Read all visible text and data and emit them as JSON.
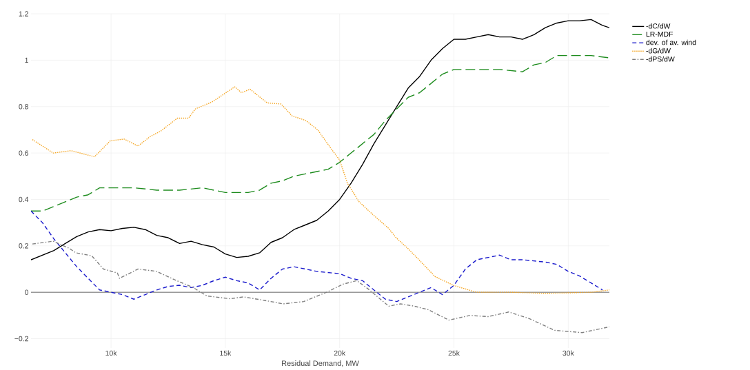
{
  "chart_data": {
    "type": "line",
    "xlabel": "Residual Demand, MW",
    "xlim": [
      6500,
      31800
    ],
    "ylim": [
      -0.24,
      1.2
    ],
    "xticks": [
      {
        "value": 10000,
        "label": "10k"
      },
      {
        "value": 15000,
        "label": "15k"
      },
      {
        "value": 20000,
        "label": "20k"
      },
      {
        "value": 25000,
        "label": "25k"
      },
      {
        "value": 30000,
        "label": "30k"
      }
    ],
    "yticks": [
      {
        "value": -0.2,
        "label": "−0.2"
      },
      0,
      0.2,
      0.4,
      0.6,
      0.8,
      1,
      1.2
    ],
    "grid": true,
    "legend": "top right",
    "marker": "none",
    "ref_lines": [
      {
        "axis": "y",
        "value": 0,
        "color": "#444444"
      }
    ],
    "series": [
      {
        "name": "-dC/dW",
        "color": "#000000",
        "line_style": "solid",
        "x": [
          6500,
          7500,
          8000,
          8500,
          9000,
          9500,
          10000,
          10500,
          11000,
          11500,
          12000,
          12500,
          13000,
          13500,
          14000,
          14500,
          15000,
          15500,
          16000,
          16500,
          17000,
          17500,
          18000,
          18500,
          19000,
          19500,
          20000,
          20500,
          21000,
          21500,
          22000,
          22500,
          23000,
          23500,
          24000,
          24500,
          25000,
          25500,
          26000,
          26500,
          27000,
          27500,
          28000,
          28500,
          29000,
          29500,
          30000,
          30500,
          31000,
          31500,
          31800
        ],
        "values": [
          0.14,
          0.18,
          0.21,
          0.24,
          0.26,
          0.27,
          0.265,
          0.275,
          0.28,
          0.27,
          0.245,
          0.235,
          0.21,
          0.22,
          0.205,
          0.195,
          0.165,
          0.15,
          0.155,
          0.17,
          0.215,
          0.235,
          0.27,
          0.29,
          0.31,
          0.35,
          0.4,
          0.47,
          0.55,
          0.64,
          0.72,
          0.8,
          0.88,
          0.93,
          1.0,
          1.05,
          1.09,
          1.09,
          1.1,
          1.11,
          1.1,
          1.1,
          1.09,
          1.11,
          1.14,
          1.16,
          1.17,
          1.17,
          1.175,
          1.15,
          1.14
        ]
      },
      {
        "name": "LR-MDF",
        "color": "#1e8c1e",
        "line_style": "longdash",
        "x": [
          6500,
          7000,
          7500,
          8000,
          8500,
          9000,
          9500,
          10000,
          11000,
          12000,
          13000,
          14000,
          15000,
          16000,
          16500,
          17000,
          17500,
          18000,
          19000,
          19500,
          20000,
          20500,
          21000,
          21500,
          22000,
          22500,
          23000,
          23500,
          24000,
          24500,
          25000,
          26000,
          27000,
          28000,
          28500,
          29000,
          29500,
          30000,
          31000,
          31800
        ],
        "values": [
          0.35,
          0.35,
          0.37,
          0.39,
          0.41,
          0.42,
          0.45,
          0.45,
          0.45,
          0.44,
          0.44,
          0.45,
          0.43,
          0.43,
          0.44,
          0.47,
          0.48,
          0.5,
          0.52,
          0.53,
          0.56,
          0.6,
          0.64,
          0.68,
          0.74,
          0.79,
          0.84,
          0.86,
          0.9,
          0.94,
          0.96,
          0.96,
          0.96,
          0.95,
          0.98,
          0.99,
          1.02,
          1.02,
          1.02,
          1.01
        ]
      },
      {
        "name": "dev. of av. wind",
        "color": "#1a1acc",
        "line_style": "dashed",
        "x": [
          6500,
          7000,
          7500,
          8000,
          8500,
          9000,
          9500,
          10000,
          10500,
          11000,
          11500,
          12000,
          12500,
          13000,
          13500,
          14000,
          14500,
          15000,
          15500,
          16000,
          16500,
          17000,
          17500,
          18000,
          18500,
          19000,
          19500,
          20000,
          20500,
          21000,
          21500,
          22000,
          22500,
          23000,
          23500,
          24000,
          24500,
          25000,
          25500,
          26000,
          26500,
          27000,
          27500,
          28000,
          28500,
          29000,
          29500,
          30000,
          30500,
          31000,
          31500
        ],
        "values": [
          0.35,
          0.3,
          0.23,
          0.17,
          0.11,
          0.06,
          0.01,
          0.0,
          -0.01,
          -0.03,
          -0.01,
          0.01,
          0.025,
          0.03,
          0.02,
          0.03,
          0.05,
          0.065,
          0.05,
          0.04,
          0.01,
          0.06,
          0.1,
          0.11,
          0.1,
          0.09,
          0.085,
          0.08,
          0.06,
          0.05,
          0.01,
          -0.03,
          -0.04,
          -0.02,
          0.0,
          0.02,
          -0.01,
          0.03,
          0.1,
          0.14,
          0.15,
          0.16,
          0.14,
          0.14,
          0.135,
          0.13,
          0.12,
          0.09,
          0.07,
          0.04,
          0.01
        ]
      },
      {
        "name": "-dG/dW",
        "color": "#f5a623",
        "line_style": "dotted",
        "x": [
          6560,
          7470,
          8250,
          9280,
          9970,
          10580,
          11180,
          11700,
          12180,
          12900,
          13390,
          13690,
          14420,
          15410,
          15710,
          16080,
          16830,
          17440,
          17920,
          18520,
          19040,
          19640,
          20000,
          20340,
          20850,
          21450,
          22150,
          22450,
          22970,
          23480,
          24170,
          25000,
          25990,
          27500,
          29010,
          31030,
          31800
        ],
        "values": [
          0.658,
          0.6,
          0.61,
          0.584,
          0.653,
          0.66,
          0.63,
          0.67,
          0.695,
          0.75,
          0.75,
          0.79,
          0.82,
          0.885,
          0.86,
          0.875,
          0.816,
          0.811,
          0.76,
          0.74,
          0.7,
          0.617,
          0.57,
          0.47,
          0.39,
          0.335,
          0.275,
          0.237,
          0.19,
          0.139,
          0.068,
          0.029,
          0.0,
          0.0,
          -0.005,
          0.0,
          0.01
        ]
      },
      {
        "name": "-dPS/dW",
        "color": "#808080",
        "line_style": "dashdot",
        "x": [
          6560,
          7470,
          8160,
          8460,
          9160,
          9670,
          10280,
          10370,
          11180,
          11990,
          12780,
          13600,
          14200,
          15200,
          15800,
          16710,
          17530,
          18430,
          19430,
          20150,
          20750,
          21240,
          22150,
          22660,
          23270,
          23870,
          24780,
          25690,
          26500,
          27400,
          28310,
          29400,
          30610,
          31800
        ],
        "values": [
          0.208,
          0.22,
          0.19,
          0.17,
          0.157,
          0.1,
          0.083,
          0.06,
          0.1,
          0.09,
          0.054,
          0.02,
          -0.016,
          -0.028,
          -0.02,
          -0.035,
          -0.05,
          -0.04,
          0.0,
          0.035,
          0.05,
          0.015,
          -0.06,
          -0.05,
          -0.06,
          -0.075,
          -0.12,
          -0.1,
          -0.105,
          -0.085,
          -0.114,
          -0.164,
          -0.174,
          -0.149
        ]
      }
    ]
  }
}
